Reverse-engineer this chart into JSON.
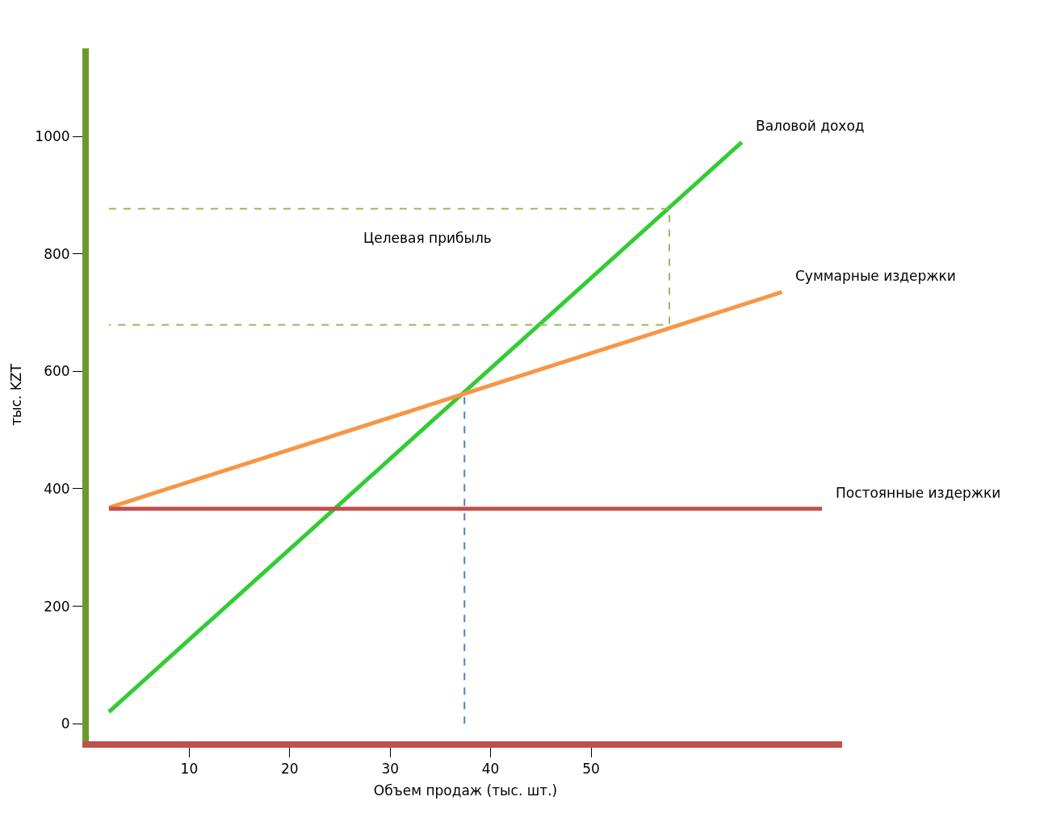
{
  "chart_data": {
    "type": "line",
    "xlabel": "Объем продаж (тыс. шт.)",
    "ylabel": "тыс. KZT",
    "xlim": [
      0,
      75
    ],
    "ylim": [
      -30,
      1150
    ],
    "xticks": [
      10,
      20,
      30,
      40,
      50
    ],
    "yticks": [
      0,
      200,
      400,
      600,
      800,
      1000
    ],
    "legend": false,
    "series": [
      {
        "name": "Валовой доход",
        "color": "#33cc33",
        "x": [
          2,
          65
        ],
        "values": [
          20,
          990
        ]
      },
      {
        "name": "Суммарные издержки",
        "color": "#f79646",
        "x": [
          2,
          69
        ],
        "values": [
          368,
          735
        ]
      },
      {
        "name": "Постоянные издержки",
        "color": "#c0504d",
        "x": [
          2,
          73
        ],
        "values": [
          366,
          366
        ]
      },
      {
        "color": "#4f81bd",
        "line_style": "dashed",
        "x": [
          37.4,
          37.4
        ],
        "values": [
          0,
          561
        ]
      },
      {
        "color": "#9bbb59",
        "line_style": "dashed",
        "x": [
          2,
          57.8,
          57.8,
          2
        ],
        "values": [
          877,
          877,
          679,
          679
        ]
      }
    ],
    "annotations": [
      "Целевая прибыль"
    ]
  }
}
